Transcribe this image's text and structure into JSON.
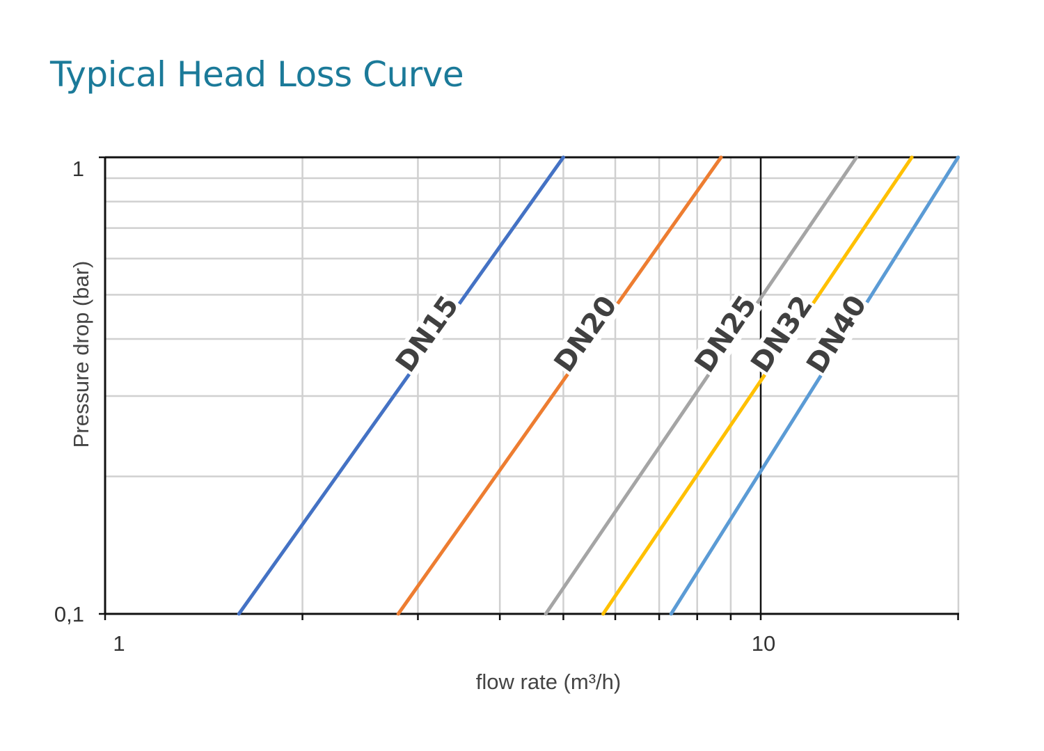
{
  "title": "Typical Head Loss Curve",
  "chart_data": {
    "type": "line",
    "title": "Typical Head Loss Curve",
    "xlabel": "flow rate (m³/h)",
    "ylabel": "Pressure drop (bar)",
    "xscale": "log",
    "yscale": "log",
    "xlim": [
      1,
      20
    ],
    "ylim": [
      0.1,
      1
    ],
    "x_ticks": [
      1,
      10
    ],
    "x_tick_labels": [
      "1",
      "10"
    ],
    "y_ticks": [
      0.1,
      1
    ],
    "y_tick_labels": [
      "0,1",
      "1"
    ],
    "grid": true,
    "legend": "none",
    "series": [
      {
        "name": "DN15",
        "color": "#4472c4",
        "x": [
          1.6,
          5.0
        ],
        "y": [
          0.1,
          1
        ]
      },
      {
        "name": "DN20",
        "color": "#ed7d31",
        "x": [
          2.8,
          8.7
        ],
        "y": [
          0.1,
          1
        ]
      },
      {
        "name": "DN25",
        "color": "#a5a5a5",
        "x": [
          4.7,
          14.0
        ],
        "y": [
          0.1,
          1
        ]
      },
      {
        "name": "DN32",
        "color": "#ffc000",
        "x": [
          5.75,
          17.0
        ],
        "y": [
          0.1,
          1
        ]
      },
      {
        "name": "DN40",
        "color": "#5b9bd5",
        "x": [
          7.3,
          20.0
        ],
        "y": [
          0.1,
          1
        ]
      }
    ]
  }
}
